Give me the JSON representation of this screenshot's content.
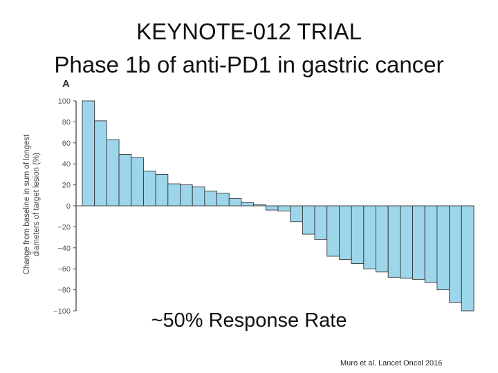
{
  "slide": {
    "title_line1": "KEYNOTE-012 TRIAL",
    "title_line2": "Phase 1b of anti-PD1 in gastric cancer",
    "annotation": "~50% Response Rate",
    "citation": "Muro et al. Lancet Oncol 2016"
  },
  "colors": {
    "bar_fill": "#9dd6ea",
    "bar_stroke": "#333333",
    "axis": "#444444"
  },
  "chart_data": {
    "type": "bar",
    "panel_label": "A",
    "ylabel_line1": "Change from baseline in sum of longest",
    "ylabel_line2": "diameters of target lesion (%)",
    "ylim": [
      -100,
      100
    ],
    "yticks": [
      100,
      80,
      60,
      40,
      20,
      0,
      -20,
      -40,
      -60,
      -80,
      -100
    ],
    "values": [
      100,
      81,
      63,
      49,
      46,
      33,
      30,
      21,
      20,
      18,
      14,
      12,
      7,
      3,
      1,
      -4,
      -5,
      -15,
      -27,
      -32,
      -48,
      -51,
      -55,
      -60,
      -63,
      -68,
      -69,
      -70,
      -73,
      -80,
      -92,
      -100
    ],
    "grid": false
  }
}
